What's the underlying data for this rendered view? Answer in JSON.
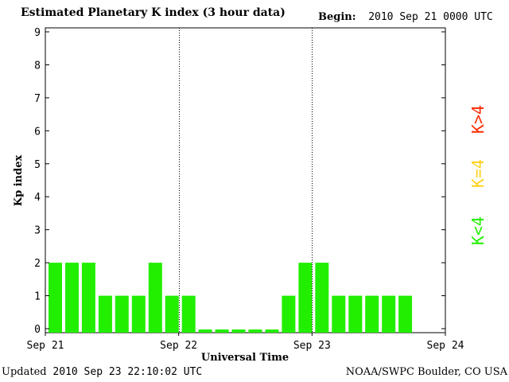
{
  "header": {
    "title": "Estimated Planetary K index (3 hour data)",
    "begin_label": "Begin:",
    "begin_value": "2010 Sep 21 0000 UTC"
  },
  "footer": {
    "updated_label": "Updated",
    "updated_value": "2010 Sep 23 22:10:02 UTC",
    "credit": "NOAA/SWPC Boulder, CO USA"
  },
  "legend": {
    "high": {
      "label": "K>4",
      "color": "#ff2a00"
    },
    "mid": {
      "label": "K=4",
      "color": "#ffd21a"
    },
    "low": {
      "label": "K<4",
      "color": "#22ee00"
    }
  },
  "chart_data": {
    "type": "bar",
    "title": "Estimated Planetary K index (3 hour data)",
    "xlabel": "Universal Time",
    "ylabel": "Kp index",
    "ylim": [
      0,
      9
    ],
    "y_ticks": [
      "0",
      "1",
      "2",
      "3",
      "4",
      "5",
      "6",
      "7",
      "8",
      "9"
    ],
    "x_ticks": [
      "Sep 21",
      "Sep 22",
      "Sep 23",
      "Sep 24"
    ],
    "bars_per_day": 8,
    "days": 3,
    "values": [
      2,
      2,
      2,
      1,
      1,
      1,
      2,
      1,
      1,
      0,
      0,
      0,
      0,
      0,
      1,
      2,
      2,
      1,
      1,
      1,
      1,
      1
    ],
    "bar_color": "#22ee00",
    "day_separators": "dotted"
  }
}
